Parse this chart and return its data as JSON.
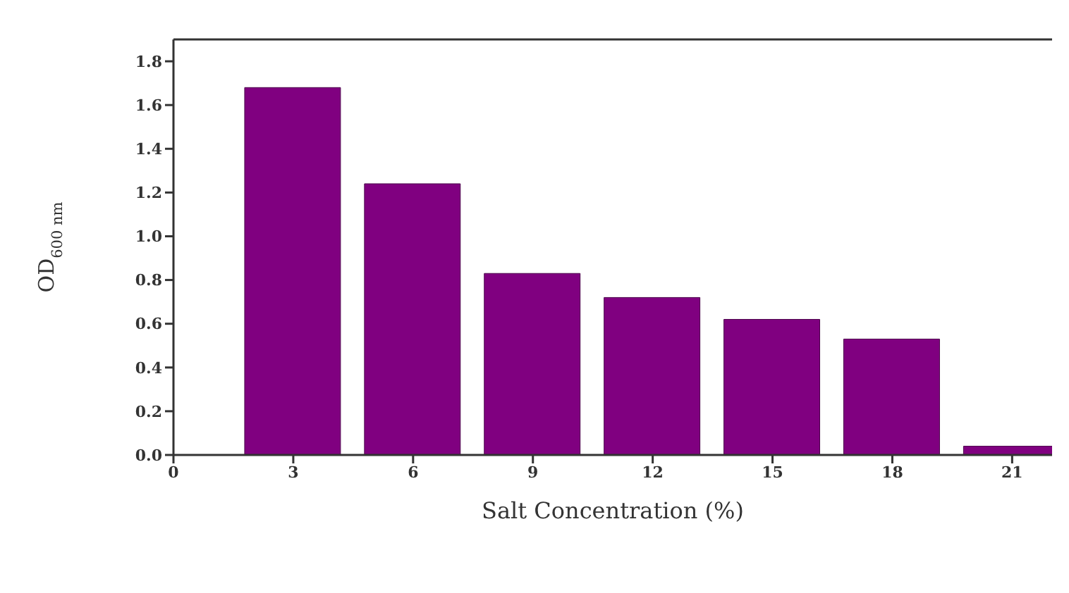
{
  "chart_data": {
    "type": "bar",
    "xlabel": "Salt Concentration (%)",
    "ylabel": "OD$_{600 nm}$",
    "x": [
      3,
      6,
      9,
      12,
      15,
      18,
      21
    ],
    "values": [
      1.68,
      1.24,
      0.83,
      0.72,
      0.62,
      0.53,
      0.04
    ],
    "color": "#800080",
    "xlim": [
      0,
      22
    ],
    "xticks": [
      0,
      3,
      6,
      9,
      12,
      15,
      18,
      21
    ],
    "ylim": [
      0,
      1.9
    ],
    "yticks": [
      {
        "value": 0,
        "label": "0.0"
      },
      {
        "value": 0.2,
        "label": "0.2"
      },
      {
        "value": 0.4,
        "label": "0.4"
      },
      {
        "value": 0.6,
        "label": "0.6"
      },
      {
        "value": 0.8,
        "label": "0.8"
      },
      {
        "value": 1,
        "label": "1.0"
      },
      {
        "value": 1.2,
        "label": "1.2"
      },
      {
        "value": 1.4,
        "label": "1.4"
      },
      {
        "value": 1.6,
        "label": "1.6"
      },
      {
        "value": 1.8,
        "label": "1.8"
      }
    ],
    "grid": false,
    "legend": false
  }
}
